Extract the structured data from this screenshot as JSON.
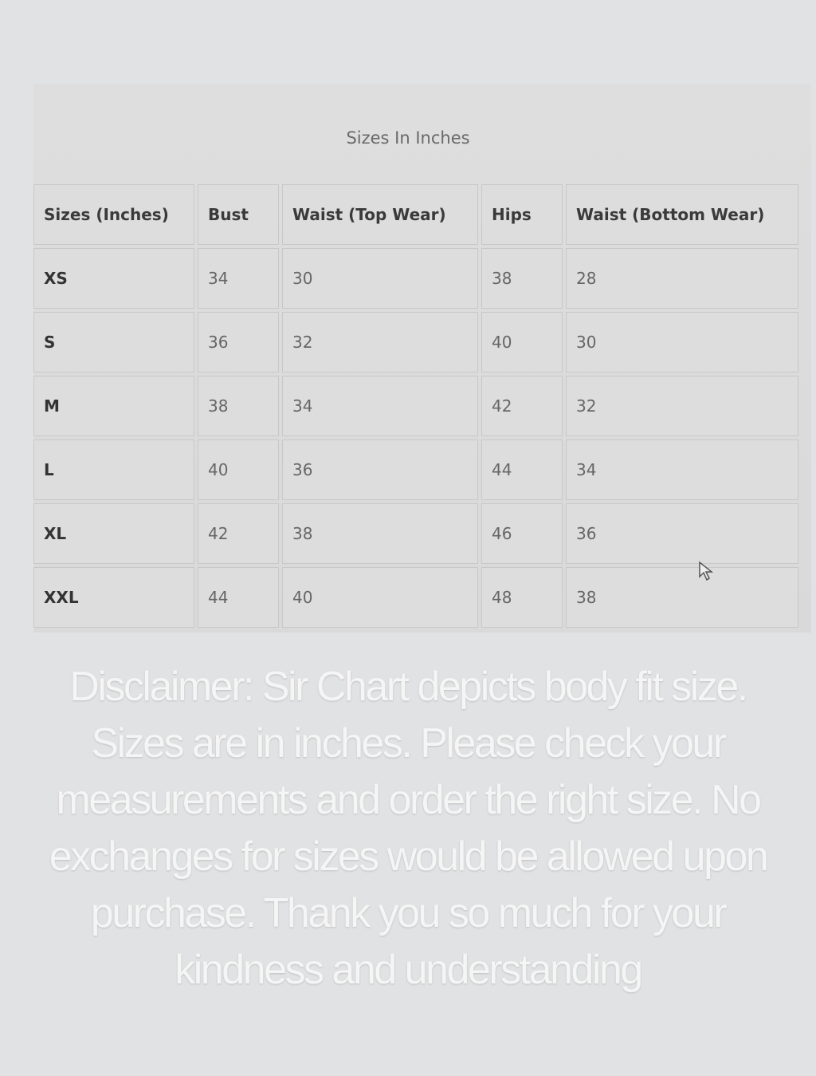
{
  "table": {
    "title": "Sizes In Inches",
    "headers": [
      "Sizes (Inches)",
      "Bust",
      "Waist (Top Wear)",
      "Hips",
      "Waist (Bottom Wear)"
    ],
    "rows": [
      [
        "XS",
        "34",
        "30",
        "38",
        "28"
      ],
      [
        "S",
        "36",
        "32",
        "40",
        "30"
      ],
      [
        "M",
        "38",
        "34",
        "42",
        "32"
      ],
      [
        "L",
        "40",
        "36",
        "44",
        "34"
      ],
      [
        "XL",
        "42",
        "38",
        "46",
        "36"
      ],
      [
        "XXL",
        "44",
        "40",
        "48",
        "38"
      ]
    ]
  },
  "cursor_icon": "mouse-pointer-icon",
  "disclaimer": "Disclaimer: Sir Chart depicts body fit size. Sizes are in inches. Please check your measurements and order the right size. No exchanges for sizes would be allowed upon purchase. Thank you so much for your kindness and understanding"
}
